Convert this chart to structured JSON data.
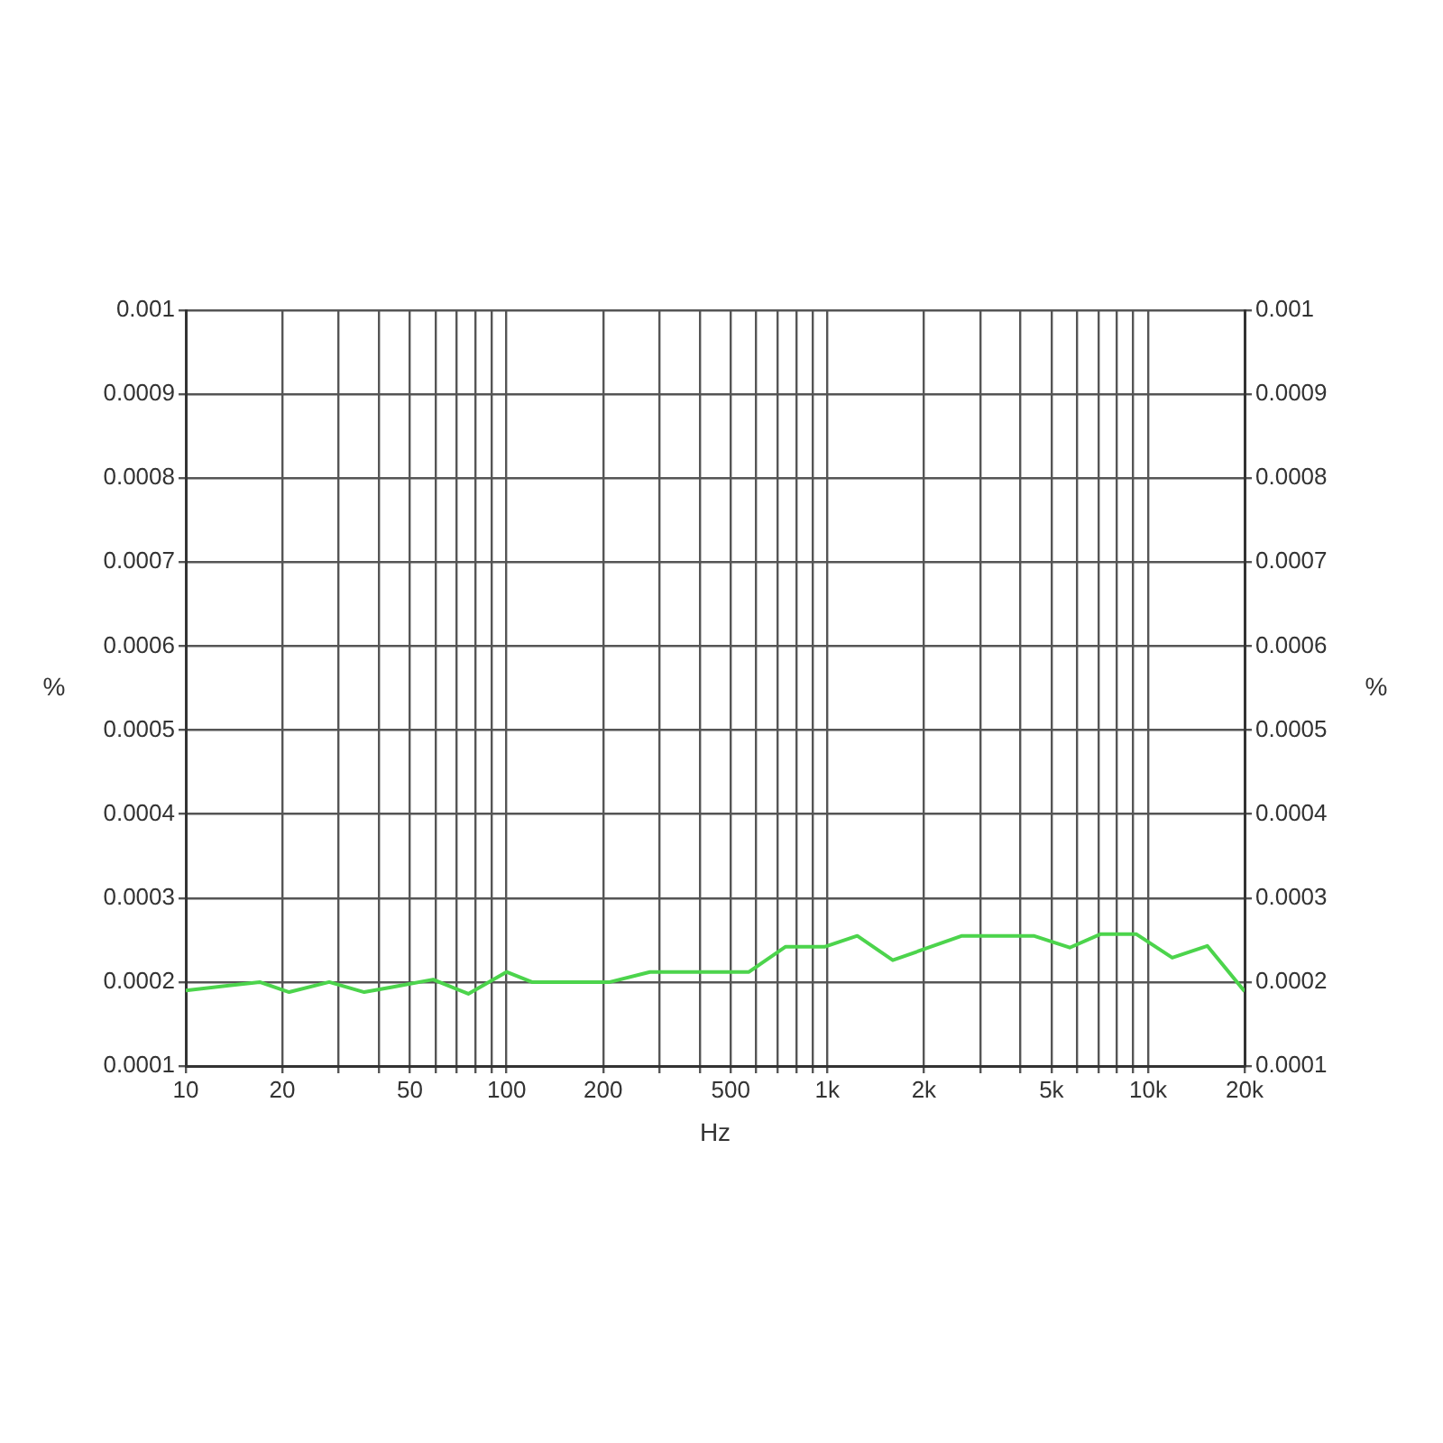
{
  "chart_data": {
    "type": "line",
    "xlabel": "Hz",
    "ylabel": "%",
    "y2label": "%",
    "log": "x",
    "grid": true,
    "marker": "none",
    "x": [
      10,
      17,
      21,
      28,
      36,
      44,
      59,
      76,
      100,
      120,
      210,
      280,
      570,
      740,
      980,
      1240,
      1600,
      2630,
      4400,
      5700,
      7100,
      9200,
      11900,
      15300,
      20000
    ],
    "series": [
      {
        "color": "#4cd44c",
        "values": [
          0.00019,
          0.0002,
          0.000188,
          0.0002,
          0.000188,
          0.000194,
          0.000203,
          0.000186,
          0.000212,
          0.0002,
          0.0002,
          0.000212,
          0.000212,
          0.000242,
          0.000242,
          0.000255,
          0.000226,
          0.000255,
          0.000255,
          0.000241,
          0.000257,
          0.000257,
          0.000229,
          0.000243,
          0.000189
        ]
      }
    ],
    "xlim": [
      10,
      20000
    ],
    "xticks": [
      10,
      20,
      {
        "value": 30,
        "label": null
      },
      {
        "value": 40,
        "label": null
      },
      50,
      {
        "value": 60,
        "label": null
      },
      {
        "value": 70,
        "label": null
      },
      {
        "value": 80,
        "label": null
      },
      {
        "value": 90,
        "label": null
      },
      100,
      200,
      {
        "value": 300,
        "label": null
      },
      {
        "value": 400,
        "label": null
      },
      500,
      {
        "value": 600,
        "label": null
      },
      {
        "value": 700,
        "label": null
      },
      {
        "value": 800,
        "label": null
      },
      {
        "value": 900,
        "label": null
      },
      {
        "value": 1000,
        "label": "1k"
      },
      {
        "value": 2000,
        "label": "2k"
      },
      {
        "value": 3000,
        "label": null
      },
      {
        "value": 4000,
        "label": null
      },
      {
        "value": 5000,
        "label": "5k"
      },
      {
        "value": 6000,
        "label": null
      },
      {
        "value": 7000,
        "label": null
      },
      {
        "value": 8000,
        "label": null
      },
      {
        "value": 9000,
        "label": null
      },
      {
        "value": 10000,
        "label": "10k"
      },
      {
        "value": 20000,
        "label": "20k"
      }
    ],
    "ylim": [
      0.0001,
      0.001
    ],
    "yticks": [
      0.0001,
      0.0002,
      0.0003,
      0.0004,
      0.0005,
      0.0006,
      0.0007,
      0.0008,
      0.0009,
      0.001
    ],
    "y2lim": [
      0.0001,
      0.001
    ],
    "y2ticks": [
      0.0001,
      0.0002,
      0.0003,
      0.0004,
      0.0005,
      0.0006,
      0.0007,
      0.0008,
      0.0009,
      0.001
    ]
  }
}
